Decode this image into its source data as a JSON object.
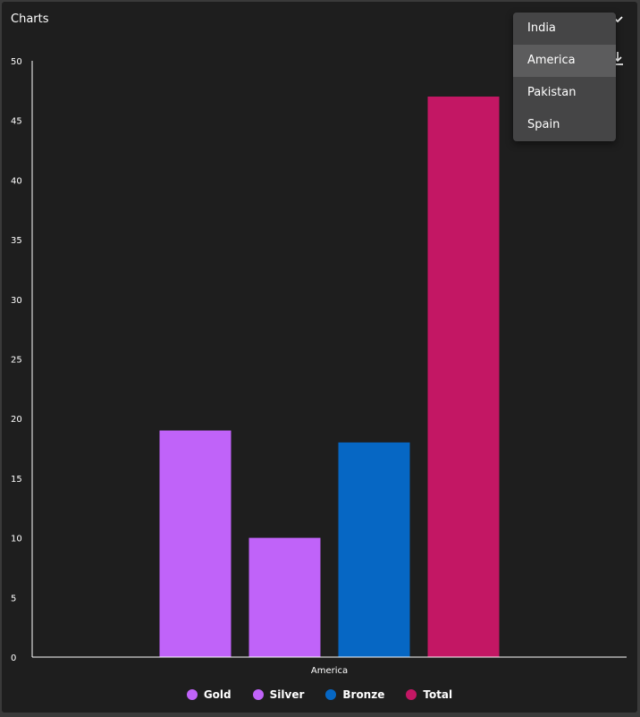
{
  "header": {
    "title": "Charts"
  },
  "icons": {
    "dropdown": "chevron-down-icon",
    "download": "download-icon"
  },
  "dropdown": {
    "options": [
      "India",
      "America",
      "Pakistan",
      "Spain"
    ],
    "selected": "America"
  },
  "colors": {
    "gold": "#c063f9",
    "silver": "#c063f9",
    "bronze": "#0667c4",
    "total": "#c31764",
    "background": "#1e1e1e"
  },
  "chart_data": {
    "type": "bar",
    "categories": [
      "America"
    ],
    "series": [
      {
        "name": "Gold",
        "values": [
          19
        ],
        "color": "#c063f9"
      },
      {
        "name": "Silver",
        "values": [
          10
        ],
        "color": "#c063f9"
      },
      {
        "name": "Bronze",
        "values": [
          18
        ],
        "color": "#0667c4"
      },
      {
        "name": "Total",
        "values": [
          47
        ],
        "color": "#c31764"
      }
    ],
    "yticks": [
      0,
      5,
      10,
      15,
      20,
      25,
      30,
      35,
      40,
      45,
      50
    ],
    "ylim": [
      0,
      50
    ],
    "grid": false,
    "legend": "bottom-center"
  }
}
